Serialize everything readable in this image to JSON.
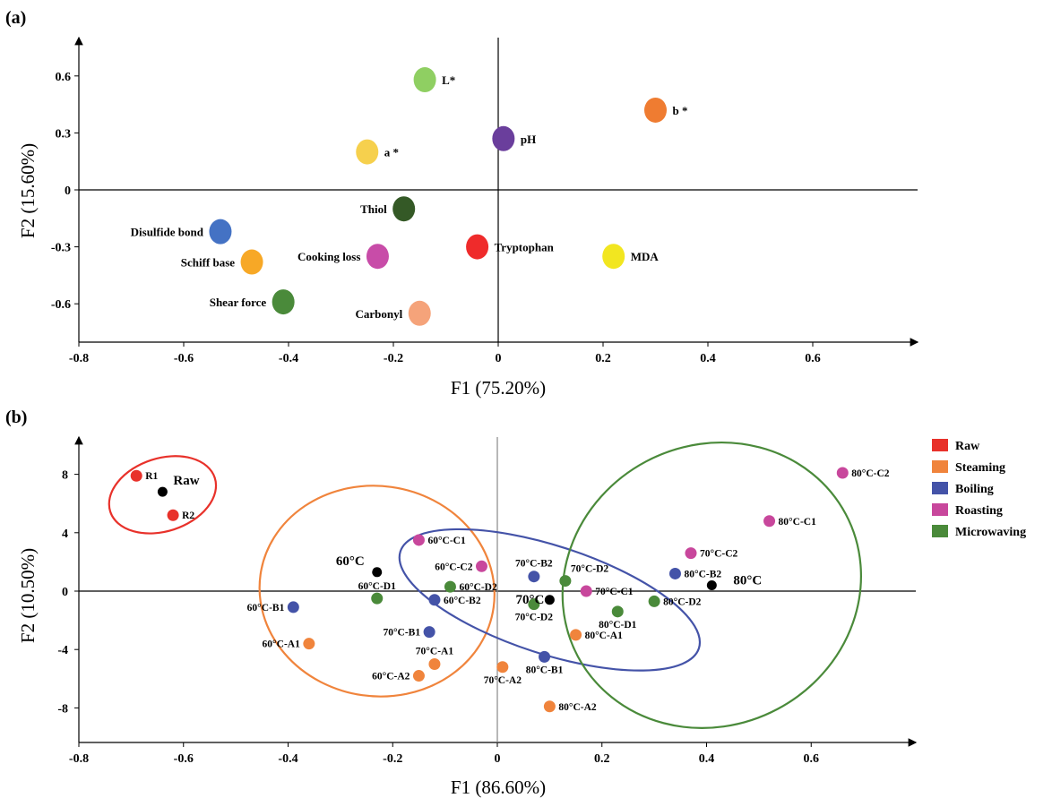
{
  "colors": {
    "raw": "#e8312a",
    "steaming": "#f0843c",
    "boiling": "#4453a8",
    "roasting": "#c8479c",
    "microwaving": "#4a8a3a",
    "center": "#000000"
  },
  "chart_data": [
    {
      "panel": "(a)",
      "type": "scatter",
      "xlabel": "F1 (75.20%)",
      "ylabel": "F2 (15.60%)",
      "xlim": [
        -0.8,
        0.8
      ],
      "ylim": [
        -0.78,
        0.78
      ],
      "xticks": [
        "-0.8",
        "-0.6",
        "-0.4",
        "-0.2",
        "0",
        "0.2",
        "0.4",
        "0.6"
      ],
      "yticks": [
        "0.6",
        "0.3",
        "0",
        "-0.3",
        "-0.6"
      ],
      "points": [
        {
          "label": "L*",
          "x": -0.14,
          "y": 0.58,
          "color": "#8fcf62",
          "label_side": "right"
        },
        {
          "label": "b *",
          "x": 0.3,
          "y": 0.42,
          "color": "#ef7c31",
          "label_side": "right"
        },
        {
          "label": "pH",
          "x": 0.01,
          "y": 0.27,
          "color": "#6a3e9c",
          "label_side": "right"
        },
        {
          "label": "a *",
          "x": -0.25,
          "y": 0.2,
          "color": "#f6d04d",
          "label_side": "right"
        },
        {
          "label": "Thiol",
          "x": -0.18,
          "y": -0.1,
          "color": "#345926",
          "label_side": "left"
        },
        {
          "label": "Disulfide bond",
          "x": -0.53,
          "y": -0.22,
          "color": "#4472c4",
          "label_side": "left"
        },
        {
          "label": "Tryptophan",
          "x": -0.04,
          "y": -0.3,
          "color": "#ef2b2b",
          "label_side": "right"
        },
        {
          "label": "Cooking loss",
          "x": -0.23,
          "y": -0.35,
          "color": "#c84ca8",
          "label_side": "left"
        },
        {
          "label": "Schiff base",
          "x": -0.47,
          "y": -0.38,
          "color": "#f7a826",
          "label_side": "left"
        },
        {
          "label": "MDA",
          "x": 0.22,
          "y": -0.35,
          "color": "#f2e620",
          "label_side": "right"
        },
        {
          "label": "Shear force",
          "x": -0.41,
          "y": -0.59,
          "color": "#4a8a3a",
          "label_side": "left"
        },
        {
          "label": "Carbonyl",
          "x": -0.15,
          "y": -0.65,
          "color": "#f5a37a",
          "label_side": "left"
        }
      ]
    },
    {
      "panel": "(b)",
      "type": "scatter",
      "xlabel": "F1 (86.60%)",
      "ylabel": "F2 (10.50%)",
      "xlim": [
        -0.8,
        0.78
      ],
      "ylim": [
        -10.5,
        10.5
      ],
      "xticks": [
        "-0.8",
        "-0.6",
        "-0.4",
        "-0.2",
        "0",
        "0.2",
        "0.4",
        "0.6"
      ],
      "yticks": [
        "8",
        "4",
        "0",
        "-4",
        "-8"
      ],
      "legend": {
        "position": "right",
        "entries": [
          {
            "name": "Raw",
            "color": "#e8312a"
          },
          {
            "name": "Steaming",
            "color": "#f0843c"
          },
          {
            "name": "Boiling",
            "color": "#4453a8"
          },
          {
            "name": "Roasting",
            "color": "#c8479c"
          },
          {
            "name": "Microwaving",
            "color": "#4a8a3a"
          }
        ]
      },
      "points": [
        {
          "label": "R1",
          "x": -0.69,
          "y": 7.9,
          "group": "raw",
          "side": "right"
        },
        {
          "label": "R2",
          "x": -0.62,
          "y": 5.2,
          "group": "raw",
          "side": "right"
        },
        {
          "label": "60°C-C1",
          "x": -0.15,
          "y": 3.5,
          "group": "roasting",
          "side": "right"
        },
        {
          "label": "60°C-C2",
          "x": -0.03,
          "y": 1.7,
          "group": "roasting",
          "side": "left"
        },
        {
          "label": "60°C-D1",
          "x": -0.23,
          "y": -0.5,
          "group": "microwaving",
          "side": "above-left"
        },
        {
          "label": "60°C-D2",
          "x": -0.09,
          "y": 0.3,
          "group": "microwaving",
          "side": "right"
        },
        {
          "label": "60°C-B2",
          "x": -0.12,
          "y": -0.6,
          "group": "boiling",
          "side": "right"
        },
        {
          "label": "60°C-B1",
          "x": -0.39,
          "y": -1.1,
          "group": "boiling",
          "side": "left"
        },
        {
          "label": "60°C-A1",
          "x": -0.36,
          "y": -3.6,
          "group": "steaming",
          "side": "left"
        },
        {
          "label": "70°C-B1",
          "x": -0.13,
          "y": -2.8,
          "group": "boiling",
          "side": "left"
        },
        {
          "label": "70°C-A1",
          "x": -0.12,
          "y": -5.0,
          "group": "steaming",
          "side": "above"
        },
        {
          "label": "60°C-A2",
          "x": -0.15,
          "y": -5.8,
          "group": "steaming",
          "side": "left"
        },
        {
          "label": "70°C-A2",
          "x": 0.01,
          "y": -5.2,
          "group": "steaming",
          "side": "below"
        },
        {
          "label": "70°C-B2",
          "x": 0.07,
          "y": 1.0,
          "group": "boiling",
          "side": "above"
        },
        {
          "label": "70°C-D2",
          "x": 0.13,
          "y": 0.7,
          "group": "microwaving",
          "side": "above-right"
        },
        {
          "label": "70°C-C1",
          "x": 0.17,
          "y": 0.0,
          "group": "roasting",
          "side": "right"
        },
        {
          "label": "70°C-D2",
          "x": 0.07,
          "y": -0.9,
          "group": "microwaving",
          "side": "below"
        },
        {
          "label": "80°C-D1",
          "x": 0.23,
          "y": -1.4,
          "group": "microwaving",
          "side": "below"
        },
        {
          "label": "80°C-A1",
          "x": 0.15,
          "y": -3.0,
          "group": "steaming",
          "side": "right"
        },
        {
          "label": "80°C-B1",
          "x": 0.09,
          "y": -4.5,
          "group": "boiling",
          "side": "below"
        },
        {
          "label": "80°C-A2",
          "x": 0.1,
          "y": -7.9,
          "group": "steaming",
          "side": "right"
        },
        {
          "label": "70°C-C2",
          "x": 0.37,
          "y": 2.6,
          "group": "roasting",
          "side": "right"
        },
        {
          "label": "80°C-B2",
          "x": 0.34,
          "y": 1.2,
          "group": "boiling",
          "side": "right"
        },
        {
          "label": "80°C-D2",
          "x": 0.3,
          "y": -0.7,
          "group": "microwaving",
          "side": "right"
        },
        {
          "label": "80°C-C1",
          "x": 0.52,
          "y": 4.8,
          "group": "roasting",
          "side": "right"
        },
        {
          "label": "80°C-C2",
          "x": 0.66,
          "y": 8.1,
          "group": "roasting",
          "side": "right"
        }
      ],
      "centers": [
        {
          "label": "Raw",
          "x": -0.64,
          "y": 6.8
        },
        {
          "label": "60°C",
          "x": -0.23,
          "y": 1.3
        },
        {
          "label": "70°C",
          "x": 0.1,
          "y": -0.6
        },
        {
          "label": "80°C",
          "x": 0.41,
          "y": 0.4
        }
      ],
      "ellipses": [
        {
          "group": "raw",
          "cx": -0.64,
          "cy": 6.6,
          "rx": 0.105,
          "ry": 2.5,
          "rotate": 18
        },
        {
          "group": "steaming",
          "cx": -0.23,
          "cy": 0.0,
          "rx": 0.225,
          "ry": 7.2,
          "rotate": -8
        },
        {
          "group": "boiling",
          "cx": 0.1,
          "cy": -0.6,
          "rx": 0.3,
          "ry": 3.7,
          "rotate": -18
        },
        {
          "group": "microwaving",
          "cx": 0.41,
          "cy": 0.4,
          "rx": 0.29,
          "ry": 9.6,
          "rotate": 28
        }
      ]
    }
  ]
}
